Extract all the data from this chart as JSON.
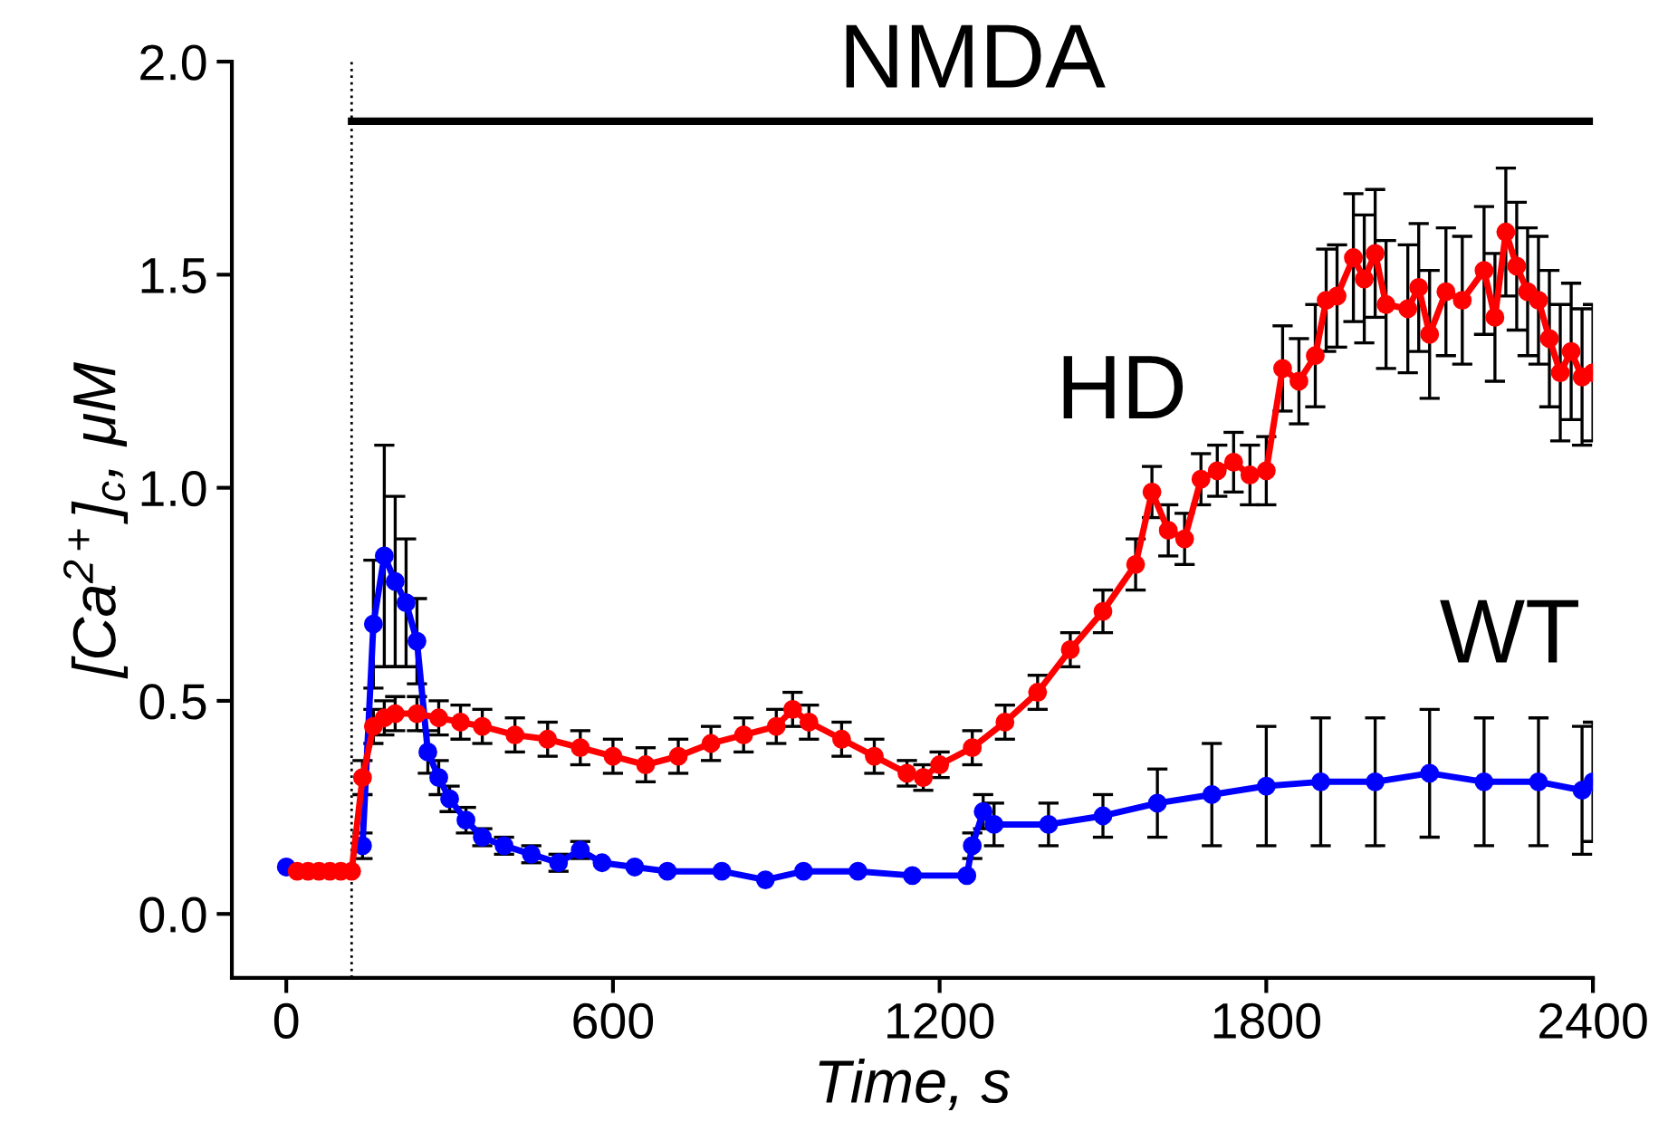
{
  "chart_data": {
    "type": "line",
    "xlabel": "Time, s",
    "ylabel": "[Ca$^{2+}$]$_{c}$, μM",
    "xlim": [
      -100,
      2400
    ],
    "xticks": [
      0,
      600,
      1200,
      1800,
      2400
    ],
    "ylim": [
      -0.15,
      2.0
    ],
    "yticks": [
      {
        "value": 0,
        "label": "0.0"
      },
      {
        "value": 0.5,
        "label": "0.5"
      },
      {
        "value": 1.0,
        "label": "1.0"
      },
      {
        "value": 1.5,
        "label": "1.5"
      },
      {
        "value": 2.0,
        "label": "2.0"
      }
    ],
    "grid": false,
    "legend": false,
    "marker": "circle",
    "line_style": "solid",
    "ref_lines": [
      {
        "axis": "x",
        "value": 120,
        "color": "#000000",
        "line_style": "dotted"
      }
    ],
    "series": [
      {
        "name": "WT",
        "color": "#0000ff",
        "x": [
          0,
          30,
          60,
          90,
          120,
          140,
          160,
          180,
          200,
          220,
          240,
          260,
          280,
          300,
          330,
          360,
          400,
          450,
          500,
          540,
          580,
          640,
          700,
          800,
          880,
          950,
          1050,
          1150,
          1250,
          1260,
          1280,
          1300,
          1400,
          1500,
          1600,
          1700,
          1800,
          1900,
          2000,
          2100,
          2200,
          2300,
          2380,
          2400
        ],
        "values": [
          0.11,
          null,
          null,
          null,
          null,
          0.16,
          0.68,
          0.84,
          0.78,
          0.73,
          0.64,
          0.38,
          0.32,
          0.27,
          0.22,
          0.18,
          0.16,
          0.14,
          0.12,
          0.15,
          0.12,
          0.11,
          0.1,
          0.1,
          0.08,
          0.1,
          0.1,
          0.09,
          0.09,
          0.16,
          0.24,
          0.21,
          0.21,
          0.23,
          0.26,
          0.28,
          0.3,
          0.31,
          0.31,
          0.33,
          0.31,
          0.31,
          0.29,
          0.31
        ],
        "errors": [
          null,
          null,
          null,
          null,
          null,
          0.03,
          0.15,
          0.26,
          0.2,
          0.15,
          0.1,
          0.05,
          0.04,
          0.03,
          0.03,
          0.02,
          0.02,
          0.02,
          0.02,
          0.02,
          null,
          null,
          null,
          null,
          null,
          null,
          null,
          null,
          null,
          0.03,
          0.04,
          0.05,
          0.05,
          0.05,
          0.08,
          0.12,
          0.14,
          0.15,
          0.15,
          0.15,
          0.15,
          0.15,
          0.15,
          0.14
        ]
      },
      {
        "name": "HD",
        "color": "#ff0000",
        "x": [
          20,
          40,
          60,
          80,
          100,
          120,
          140,
          160,
          180,
          200,
          240,
          280,
          320,
          360,
          420,
          480,
          540,
          600,
          660,
          720,
          780,
          840,
          900,
          930,
          960,
          1020,
          1080,
          1140,
          1170,
          1200,
          1260,
          1320,
          1380,
          1440,
          1500,
          1560,
          1590,
          1620,
          1650,
          1680,
          1710,
          1740,
          1770,
          1800,
          1830,
          1860,
          1890,
          1910,
          1930,
          1960,
          1980,
          2000,
          2020,
          2060,
          2080,
          2100,
          2130,
          2160,
          2200,
          2220,
          2240,
          2260,
          2280,
          2300,
          2320,
          2340,
          2360,
          2380,
          2400
        ],
        "values": [
          0.1,
          0.1,
          0.1,
          0.1,
          0.1,
          0.1,
          0.32,
          0.44,
          0.46,
          0.47,
          0.47,
          0.46,
          0.45,
          0.44,
          0.42,
          0.41,
          0.39,
          0.37,
          0.35,
          0.37,
          0.4,
          0.42,
          0.44,
          0.48,
          0.45,
          0.41,
          0.37,
          0.33,
          0.32,
          0.35,
          0.39,
          0.45,
          0.52,
          0.62,
          0.71,
          0.82,
          0.99,
          0.9,
          0.88,
          1.02,
          1.04,
          1.06,
          1.03,
          1.04,
          1.28,
          1.25,
          1.31,
          1.44,
          1.45,
          1.54,
          1.49,
          1.55,
          1.43,
          1.42,
          1.47,
          1.36,
          1.46,
          1.44,
          1.51,
          1.4,
          1.6,
          1.52,
          1.46,
          1.44,
          1.35,
          1.27,
          1.32,
          1.26,
          1.27
        ],
        "errors": [
          null,
          null,
          null,
          null,
          null,
          null,
          0.04,
          0.04,
          0.04,
          0.04,
          0.04,
          0.04,
          0.04,
          0.04,
          0.04,
          0.04,
          0.04,
          0.04,
          0.04,
          0.04,
          0.04,
          0.04,
          0.04,
          0.04,
          0.04,
          0.04,
          0.04,
          0.03,
          0.03,
          0.03,
          0.04,
          0.04,
          0.04,
          0.04,
          0.05,
          0.06,
          0.06,
          0.06,
          0.06,
          0.06,
          0.06,
          0.07,
          0.07,
          0.08,
          0.1,
          0.1,
          0.12,
          0.12,
          0.12,
          0.15,
          0.15,
          0.15,
          0.15,
          0.15,
          0.15,
          0.15,
          0.15,
          0.15,
          0.15,
          0.15,
          0.15,
          0.15,
          0.15,
          0.15,
          0.16,
          0.16,
          0.16,
          0.16,
          0.16
        ]
      },
      {
        "name": "NMDA",
        "color": "#000000",
        "marker": "none",
        "x": [
          120,
          2400
        ],
        "values": [
          1.86,
          1.86
        ]
      }
    ]
  }
}
